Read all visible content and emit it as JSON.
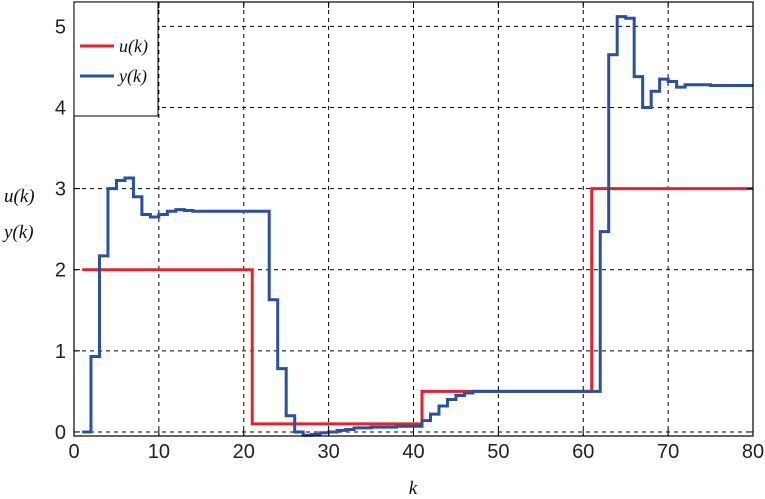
{
  "chart_data": {
    "type": "line",
    "step": true,
    "title": "",
    "xlabel": "k",
    "ylabel": [
      "u(k)",
      "y(k)"
    ],
    "xlim": [
      0,
      80
    ],
    "ylim": [
      -0.05,
      5.3
    ],
    "xticks": [
      0,
      10,
      20,
      30,
      40,
      50,
      60,
      70,
      80
    ],
    "yticks": [
      0,
      1,
      2,
      3,
      4,
      5
    ],
    "grid": true,
    "legend_position": "top-left",
    "series": [
      {
        "name": "u(k)",
        "color": "#e8202a",
        "x": [
          1,
          21,
          41,
          61,
          80
        ],
        "y": [
          2,
          0.1,
          0.5,
          3,
          3
        ]
      },
      {
        "name": "y(k)",
        "color": "#2a4fa3",
        "x": [
          1,
          2,
          3,
          4,
          5,
          6,
          7,
          8,
          9,
          10,
          11,
          12,
          13,
          14,
          15,
          20,
          21,
          22,
          23,
          24,
          25,
          26,
          27,
          28,
          29,
          30,
          31,
          32,
          33,
          35,
          38,
          40,
          41,
          42,
          43,
          44,
          45,
          46,
          47,
          48,
          50,
          55,
          60,
          61,
          62,
          63,
          64,
          65,
          66,
          67,
          68,
          69,
          70,
          71,
          72,
          75,
          80
        ],
        "y": [
          0,
          0.93,
          2.17,
          3.0,
          3.1,
          3.13,
          2.9,
          2.68,
          2.65,
          2.68,
          2.72,
          2.74,
          2.73,
          2.72,
          2.72,
          2.72,
          2.72,
          2.72,
          1.63,
          0.78,
          0.2,
          0.0,
          -0.04,
          -0.03,
          -0.01,
          0.0,
          0.02,
          0.03,
          0.05,
          0.06,
          0.07,
          0.07,
          0.14,
          0.22,
          0.32,
          0.4,
          0.45,
          0.48,
          0.5,
          0.5,
          0.5,
          0.5,
          0.5,
          0.5,
          2.47,
          4.65,
          5.12,
          5.1,
          4.38,
          4.0,
          4.2,
          4.35,
          4.32,
          4.25,
          4.28,
          4.27,
          4.27
        ]
      }
    ]
  }
}
